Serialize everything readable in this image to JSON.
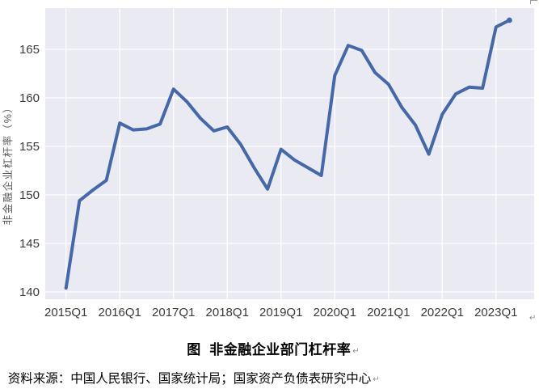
{
  "figure": {
    "caption": "图  非金融企业部门杠杆率",
    "source": "资料来源：中国人民银行、国家统计局；国家资产负债表研究中心",
    "paragraph_mark": "↵"
  },
  "chart_data": {
    "type": "line",
    "title": "",
    "xlabel": "",
    "ylabel": "非金融企业杠杆率（%）",
    "grid": true,
    "legend": "none",
    "plot_bg": "#eaeaf2",
    "grid_color": "#ffffff",
    "line_color": "#4468a9",
    "tick_color": "#3a3a3a",
    "ylabel_color": "#595959",
    "y_ticks": [
      140,
      145,
      150,
      155,
      160,
      165
    ],
    "ylim": [
      139.25,
      169.25
    ],
    "x_tick_labels": [
      "2015Q1",
      "2016Q1",
      "2017Q1",
      "2018Q1",
      "2019Q1",
      "2020Q1",
      "2021Q1",
      "2022Q1",
      "2023Q1"
    ],
    "series": [
      {
        "name": "非金融企业部门杠杆率",
        "x": [
          "2015Q1",
          "2015Q2",
          "2015Q3",
          "2015Q4",
          "2016Q1",
          "2016Q2",
          "2016Q3",
          "2016Q4",
          "2017Q1",
          "2017Q2",
          "2017Q3",
          "2017Q4",
          "2018Q1",
          "2018Q2",
          "2018Q3",
          "2018Q4",
          "2019Q1",
          "2019Q2",
          "2019Q3",
          "2019Q4",
          "2020Q1",
          "2020Q2",
          "2020Q3",
          "2020Q4",
          "2021Q1",
          "2021Q2",
          "2021Q3",
          "2021Q4",
          "2022Q1",
          "2022Q2",
          "2022Q3",
          "2022Q4",
          "2023Q1",
          "2023Q2"
        ],
        "values": [
          140.4,
          149.4,
          150.5,
          151.5,
          157.4,
          156.7,
          156.8,
          157.3,
          160.9,
          159.6,
          157.9,
          156.6,
          157.0,
          155.2,
          152.8,
          150.6,
          154.7,
          153.6,
          152.8,
          152.0,
          162.3,
          165.4,
          164.9,
          162.6,
          161.4,
          159.0,
          157.2,
          154.2,
          158.3,
          160.4,
          161.1,
          161.0,
          167.3,
          168.0
        ]
      }
    ]
  }
}
